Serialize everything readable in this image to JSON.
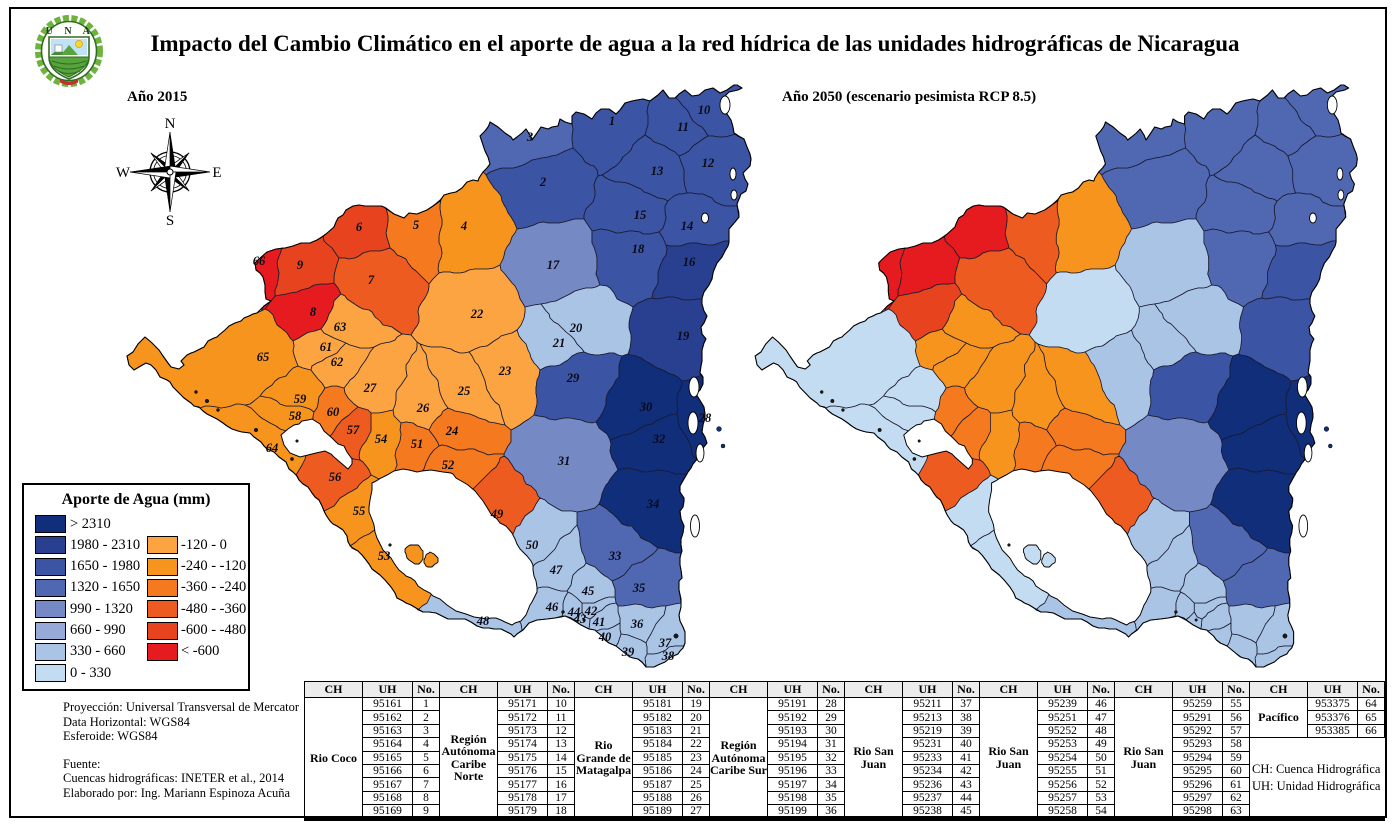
{
  "figure": {
    "title": "Impacto del Cambio Climático en el aporte de agua a la red hídrica de las unidades hidrográficas de Nicaragua",
    "logo": {
      "acronym": "U N A",
      "institution": "UNIVERSIDAD NACIONAL AGRARIA"
    },
    "maps": [
      {
        "id": "map2015",
        "label": "Año 2015"
      },
      {
        "id": "map2050",
        "label": "Año 2050 (escenario pesimista RCP 8.5)"
      }
    ],
    "compass": {
      "north": "N",
      "south": "S",
      "east": "E",
      "west": "W"
    }
  },
  "legend": {
    "title": "Aporte de Agua (mm)",
    "classes": [
      {
        "key": "gt2310",
        "label": "> 2310",
        "color": "#102e7a",
        "column": "left"
      },
      {
        "key": "1980_2310",
        "label": "1980 - 2310",
        "color": "#28408f",
        "column": "left"
      },
      {
        "key": "1650_1980",
        "label": "1650 - 1980",
        "color": "#3b54a4",
        "column": "left"
      },
      {
        "key": "1320_1650",
        "label": "1320 - 1650",
        "color": "#5068b1",
        "column": "left"
      },
      {
        "key": "990_1320",
        "label": "990 - 1320",
        "color": "#7589c4",
        "column": "left"
      },
      {
        "key": "660_990",
        "label": "660 - 990",
        "color": "#97a9d6",
        "column": "left"
      },
      {
        "key": "330_660",
        "label": "330 - 660",
        "color": "#aac4e6",
        "column": "left"
      },
      {
        "key": "0_330",
        "label": "0 - 330",
        "color": "#c3dcf1",
        "column": "left"
      },
      {
        "key": "m120_0",
        "label": "-120 - 0",
        "color": "#fba441",
        "column": "right"
      },
      {
        "key": "m240_m120",
        "label": "-240 - -120",
        "color": "#f7941e",
        "column": "right"
      },
      {
        "key": "m360_m240",
        "label": "-360 - -240",
        "color": "#f5791f",
        "column": "right"
      },
      {
        "key": "m480_m360",
        "label": "-480 - -360",
        "color": "#ee5b20",
        "column": "right"
      },
      {
        "key": "m600_m480",
        "label": "-600 - -480",
        "color": "#e8431f",
        "column": "right"
      },
      {
        "key": "lt_m600",
        "label": "< -600",
        "color": "#e51b20",
        "column": "right"
      }
    ]
  },
  "chart_data": {
    "type": "choropleth-map",
    "description": "Water contribution (mm) per hydrographic unit of Nicaragua, year 2015 vs year 2050 (pessimistic scenario RCP 8.5)",
    "value_classes_mm": [
      "> 2310",
      "1980 - 2310",
      "1650 - 1980",
      "1320 - 1650",
      "990 - 1320",
      "660 - 990",
      "330 - 660",
      "0 - 330",
      "-120 - 0",
      "-240 - -120",
      "-360 - -240",
      "-480 - -360",
      "-600 - -480",
      "< -600"
    ],
    "units": [
      {
        "no": 1,
        "uh": "95161",
        "ch": "Rio Coco",
        "class_2015": "1650_1980",
        "class_2050": "1320_1650"
      },
      {
        "no": 2,
        "uh": "95162",
        "ch": "Rio Coco",
        "class_2015": "1650_1980",
        "class_2050": "1320_1650"
      },
      {
        "no": 3,
        "uh": "95163",
        "ch": "Rio Coco",
        "class_2015": "1320_1650",
        "class_2050": "1320_1650"
      },
      {
        "no": 4,
        "uh": "95164",
        "ch": "Rio Coco",
        "class_2015": "m240_m120",
        "class_2050": "m240_m120"
      },
      {
        "no": 5,
        "uh": "95165",
        "ch": "Rio Coco",
        "class_2015": "m360_m240",
        "class_2050": "m480_m360"
      },
      {
        "no": 6,
        "uh": "95166",
        "ch": "Rio Coco",
        "class_2015": "m600_m480",
        "class_2050": "lt_m600"
      },
      {
        "no": 7,
        "uh": "95167",
        "ch": "Rio Coco",
        "class_2015": "m480_m360",
        "class_2050": "m480_m360"
      },
      {
        "no": 8,
        "uh": "95168",
        "ch": "Rio Coco",
        "class_2015": "lt_m600",
        "class_2050": "m600_m480"
      },
      {
        "no": 9,
        "uh": "95169",
        "ch": "Rio Coco",
        "class_2015": "m600_m480",
        "class_2050": "lt_m600"
      },
      {
        "no": 10,
        "uh": "95171",
        "ch": "Región Autónoma Caribe Norte",
        "class_2015": "1650_1980",
        "class_2050": "1320_1650"
      },
      {
        "no": 11,
        "uh": "95172",
        "ch": "Región Autónoma Caribe Norte",
        "class_2015": "1650_1980",
        "class_2050": "1320_1650"
      },
      {
        "no": 12,
        "uh": "95173",
        "ch": "Región Autónoma Caribe Norte",
        "class_2015": "1650_1980",
        "class_2050": "1320_1650"
      },
      {
        "no": 13,
        "uh": "95174",
        "ch": "Región Autónoma Caribe Norte",
        "class_2015": "1650_1980",
        "class_2050": "1320_1650"
      },
      {
        "no": 14,
        "uh": "95175",
        "ch": "Región Autónoma Caribe Norte",
        "class_2015": "1650_1980",
        "class_2050": "1320_1650"
      },
      {
        "no": 15,
        "uh": "95176",
        "ch": "Región Autónoma Caribe Norte",
        "class_2015": "1650_1980",
        "class_2050": "1320_1650"
      },
      {
        "no": 16,
        "uh": "95177",
        "ch": "Región Autónoma Caribe Norte",
        "class_2015": "1980_2310",
        "class_2050": "1650_1980"
      },
      {
        "no": 17,
        "uh": "95178",
        "ch": "Región Autónoma Caribe Norte",
        "class_2015": "990_1320",
        "class_2050": "330_660"
      },
      {
        "no": 18,
        "uh": "95179",
        "ch": "Región Autónoma Caribe Norte",
        "class_2015": "1650_1980",
        "class_2050": "1320_1650"
      },
      {
        "no": 19,
        "uh": "95181",
        "ch": "Rio Grande de Matagalpa",
        "class_2015": "1980_2310",
        "class_2050": "1650_1980"
      },
      {
        "no": 20,
        "uh": "95182",
        "ch": "Rio Grande de Matagalpa",
        "class_2015": "330_660",
        "class_2050": "330_660"
      },
      {
        "no": 21,
        "uh": "95183",
        "ch": "Rio Grande de Matagalpa",
        "class_2015": "330_660",
        "class_2050": "330_660"
      },
      {
        "no": 22,
        "uh": "95184",
        "ch": "Rio Grande de Matagalpa",
        "class_2015": "m120_0",
        "class_2050": "0_330"
      },
      {
        "no": 23,
        "uh": "95185",
        "ch": "Rio Grande de Matagalpa",
        "class_2015": "m120_0",
        "class_2050": "330_660"
      },
      {
        "no": 24,
        "uh": "95186",
        "ch": "Rio Grande de Matagalpa",
        "class_2015": "m360_m240",
        "class_2050": "m360_m240"
      },
      {
        "no": 25,
        "uh": "95187",
        "ch": "Rio Grande de Matagalpa",
        "class_2015": "m120_0",
        "class_2050": "m240_m120"
      },
      {
        "no": 26,
        "uh": "95188",
        "ch": "Rio Grande de Matagalpa",
        "class_2015": "m120_0",
        "class_2050": "m240_m120"
      },
      {
        "no": 27,
        "uh": "95189",
        "ch": "Rio Grande de Matagalpa",
        "class_2015": "m120_0",
        "class_2050": "m240_m120"
      },
      {
        "no": 28,
        "uh": "95191",
        "ch": "Región Autónoma Caribe Sur",
        "class_2015": "gt2310",
        "class_2050": "gt2310"
      },
      {
        "no": 29,
        "uh": "95192",
        "ch": "Región Autónoma Caribe Sur",
        "class_2015": "1650_1980",
        "class_2050": "1650_1980"
      },
      {
        "no": 30,
        "uh": "95193",
        "ch": "Región Autónoma Caribe Sur",
        "class_2015": "gt2310",
        "class_2050": "gt2310"
      },
      {
        "no": 31,
        "uh": "95194",
        "ch": "Región Autónoma Caribe Sur",
        "class_2015": "990_1320",
        "class_2050": "990_1320"
      },
      {
        "no": 32,
        "uh": "95195",
        "ch": "Región Autónoma Caribe Sur",
        "class_2015": "gt2310",
        "class_2050": "gt2310"
      },
      {
        "no": 33,
        "uh": "95196",
        "ch": "Región Autónoma Caribe Sur",
        "class_2015": "1320_1650",
        "class_2050": "1320_1650"
      },
      {
        "no": 34,
        "uh": "95197",
        "ch": "Región Autónoma Caribe Sur",
        "class_2015": "gt2310",
        "class_2050": "gt2310"
      },
      {
        "no": 35,
        "uh": "95198",
        "ch": "Región Autónoma Caribe Sur",
        "class_2015": "1320_1650",
        "class_2050": "1320_1650"
      },
      {
        "no": 36,
        "uh": "95199",
        "ch": "Región Autónoma Caribe Sur",
        "class_2015": "330_660",
        "class_2050": "330_660"
      },
      {
        "no": 37,
        "uh": "95211",
        "ch": "Rio San Juan",
        "class_2015": "330_660",
        "class_2050": "330_660"
      },
      {
        "no": 38,
        "uh": "95213",
        "ch": "Rio San Juan",
        "class_2015": "330_660",
        "class_2050": "330_660"
      },
      {
        "no": 39,
        "uh": "95219",
        "ch": "Rio San Juan",
        "class_2015": "330_660",
        "class_2050": "330_660"
      },
      {
        "no": 40,
        "uh": "95231",
        "ch": "Rio San Juan",
        "class_2015": "330_660",
        "class_2050": "330_660"
      },
      {
        "no": 41,
        "uh": "95233",
        "ch": "Rio San Juan",
        "class_2015": "330_660",
        "class_2050": "330_660"
      },
      {
        "no": 42,
        "uh": "95234",
        "ch": "Rio San Juan",
        "class_2015": "330_660",
        "class_2050": "330_660"
      },
      {
        "no": 43,
        "uh": "95236",
        "ch": "Rio San Juan",
        "class_2015": "330_660",
        "class_2050": "330_660"
      },
      {
        "no": 44,
        "uh": "95237",
        "ch": "Rio San Juan",
        "class_2015": "330_660",
        "class_2050": "330_660"
      },
      {
        "no": 45,
        "uh": "95238",
        "ch": "Rio San Juan",
        "class_2015": "330_660",
        "class_2050": "330_660"
      },
      {
        "no": 46,
        "uh": "95239",
        "ch": "Rio San Juan",
        "class_2015": "330_660",
        "class_2050": "330_660"
      },
      {
        "no": 47,
        "uh": "95251",
        "ch": "Rio San Juan",
        "class_2015": "330_660",
        "class_2050": "330_660"
      },
      {
        "no": 48,
        "uh": "95252",
        "ch": "Rio San Juan",
        "class_2015": "330_660",
        "class_2050": "330_660"
      },
      {
        "no": 49,
        "uh": "95253",
        "ch": "Rio San Juan",
        "class_2015": "m480_m360",
        "class_2050": "m480_m360"
      },
      {
        "no": 50,
        "uh": "95254",
        "ch": "Rio San Juan",
        "class_2015": "330_660",
        "class_2050": "330_660"
      },
      {
        "no": 51,
        "uh": "95255",
        "ch": "Rio San Juan",
        "class_2015": "m360_m240",
        "class_2050": "m360_m240"
      },
      {
        "no": 52,
        "uh": "95256",
        "ch": "Rio San Juan",
        "class_2015": "m360_m240",
        "class_2050": "m360_m240"
      },
      {
        "no": 53,
        "uh": "95257",
        "ch": "Rio San Juan",
        "class_2015": "m240_m120",
        "class_2050": "0_330"
      },
      {
        "no": 54,
        "uh": "95258",
        "ch": "Rio San Juan",
        "class_2015": "m240_m120",
        "class_2050": "m240_m120"
      },
      {
        "no": 55,
        "uh": "95259",
        "ch": "Rio San Juan",
        "class_2015": "m240_m120",
        "class_2050": "0_330"
      },
      {
        "no": 56,
        "uh": "95291",
        "ch": "Rio San Juan",
        "class_2015": "m480_m360",
        "class_2050": "m480_m360"
      },
      {
        "no": 57,
        "uh": "95292",
        "ch": "Rio San Juan",
        "class_2015": "m480_m360",
        "class_2050": "m360_m240"
      },
      {
        "no": 58,
        "uh": "95293",
        "ch": "Rio San Juan",
        "class_2015": "m240_m120",
        "class_2050": "0_330"
      },
      {
        "no": 59,
        "uh": "95294",
        "ch": "Rio San Juan",
        "class_2015": "m240_m120",
        "class_2050": "0_330"
      },
      {
        "no": 60,
        "uh": "95295",
        "ch": "Rio San Juan",
        "class_2015": "m360_m240",
        "class_2050": "m360_m240"
      },
      {
        "no": 61,
        "uh": "95296",
        "ch": "Rio San Juan",
        "class_2015": "m120_0",
        "class_2050": "m240_m120"
      },
      {
        "no": 62,
        "uh": "95297",
        "ch": "Rio San Juan",
        "class_2015": "m120_0",
        "class_2050": "m240_m120"
      },
      {
        "no": 63,
        "uh": "95298",
        "ch": "Rio San Juan",
        "class_2015": "m120_0",
        "class_2050": "m240_m120"
      },
      {
        "no": 64,
        "uh": "953375",
        "ch": "Pacífico",
        "class_2015": "m240_m120",
        "class_2050": "0_330"
      },
      {
        "no": 65,
        "uh": "953376",
        "ch": "Pacífico",
        "class_2015": "m240_m120",
        "class_2050": "0_330"
      },
      {
        "no": 66,
        "uh": "953385",
        "ch": "Pacífico",
        "class_2015": "lt_m600",
        "class_2050": "lt_m600"
      }
    ]
  },
  "notes": {
    "projection": [
      "Proyección: Universal Transversal de Mercator",
      "Data Horizontal: WGS84",
      "Esferoide: WGS84"
    ],
    "source": [
      "Fuente:",
      "Cuencas hidrográficas: INETER et al., 2014",
      "Elaborado por: Ing. Mariann Espinoza Acuña"
    ]
  },
  "table": {
    "headers": [
      "CH",
      "UH",
      "No."
    ],
    "groups": [
      {
        "ch": "Rio Coco",
        "rows": [
          [
            "95161",
            "1"
          ],
          [
            "95162",
            "2"
          ],
          [
            "95163",
            "3"
          ],
          [
            "95164",
            "4"
          ],
          [
            "95165",
            "5"
          ],
          [
            "95166",
            "6"
          ],
          [
            "95167",
            "7"
          ],
          [
            "95168",
            "8"
          ],
          [
            "95169",
            "9"
          ]
        ]
      },
      {
        "ch": "Región Autónoma Caribe Norte",
        "rows": [
          [
            "95171",
            "10"
          ],
          [
            "95172",
            "11"
          ],
          [
            "95173",
            "12"
          ],
          [
            "95174",
            "13"
          ],
          [
            "95175",
            "14"
          ],
          [
            "95176",
            "15"
          ],
          [
            "95177",
            "16"
          ],
          [
            "95178",
            "17"
          ],
          [
            "95179",
            "18"
          ]
        ]
      },
      {
        "ch": "Rio Grande de Matagalpa",
        "rows": [
          [
            "95181",
            "19"
          ],
          [
            "95182",
            "20"
          ],
          [
            "95183",
            "21"
          ],
          [
            "95184",
            "22"
          ],
          [
            "95185",
            "23"
          ],
          [
            "95186",
            "24"
          ],
          [
            "95187",
            "25"
          ],
          [
            "95188",
            "26"
          ],
          [
            "95189",
            "27"
          ]
        ]
      },
      {
        "ch": "Región Autónoma Caribe Sur",
        "rows": [
          [
            "95191",
            "28"
          ],
          [
            "95192",
            "29"
          ],
          [
            "95193",
            "30"
          ],
          [
            "95194",
            "31"
          ],
          [
            "95195",
            "32"
          ],
          [
            "95196",
            "33"
          ],
          [
            "95197",
            "34"
          ],
          [
            "95198",
            "35"
          ],
          [
            "95199",
            "36"
          ]
        ]
      },
      {
        "ch": "Rio San Juan",
        "rows": [
          [
            "95211",
            "37"
          ],
          [
            "95213",
            "38"
          ],
          [
            "95219",
            "39"
          ],
          [
            "95231",
            "40"
          ],
          [
            "95233",
            "41"
          ],
          [
            "95234",
            "42"
          ],
          [
            "95236",
            "43"
          ],
          [
            "95237",
            "44"
          ],
          [
            "95238",
            "45"
          ]
        ]
      },
      {
        "ch": "Rio San Juan",
        "rows": [
          [
            "95239",
            "46"
          ],
          [
            "95251",
            "47"
          ],
          [
            "95252",
            "48"
          ],
          [
            "95253",
            "49"
          ],
          [
            "95254",
            "50"
          ],
          [
            "95255",
            "51"
          ],
          [
            "95256",
            "52"
          ],
          [
            "95257",
            "53"
          ],
          [
            "95258",
            "54"
          ]
        ]
      },
      {
        "ch": "Rio San Juan",
        "rows": [
          [
            "95259",
            "55"
          ],
          [
            "95291",
            "56"
          ],
          [
            "95292",
            "57"
          ],
          [
            "95293",
            "58"
          ],
          [
            "95294",
            "59"
          ],
          [
            "95295",
            "60"
          ],
          [
            "95296",
            "61"
          ],
          [
            "95297",
            "62"
          ],
          [
            "95298",
            "63"
          ]
        ]
      },
      {
        "ch": "Pacífico",
        "rows": [
          [
            "953375",
            "64"
          ],
          [
            "953376",
            "65"
          ],
          [
            "953385",
            "66"
          ]
        ],
        "note_lines": [
          "CH: Cuenca Hidrográfica",
          "UH: Unidad Hidrográfica"
        ]
      }
    ]
  }
}
